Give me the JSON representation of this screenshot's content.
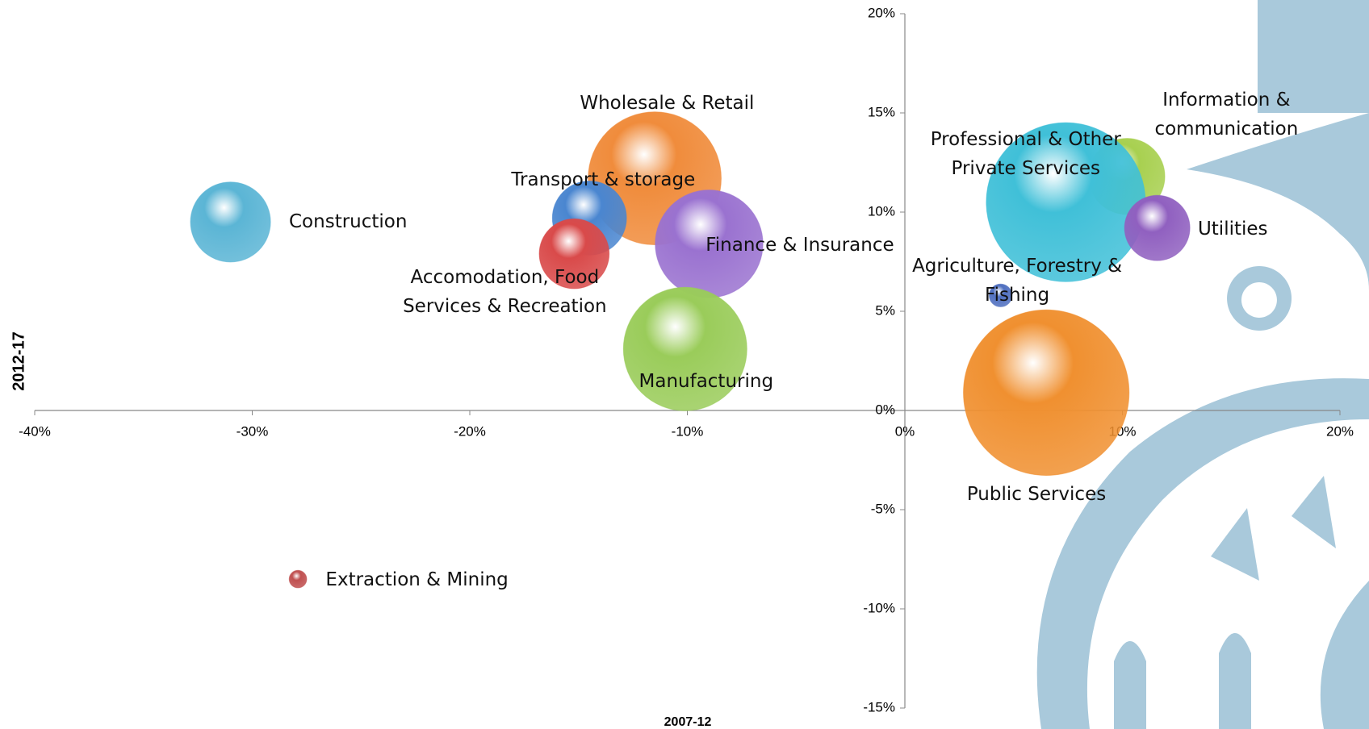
{
  "chart_data": {
    "type": "bubble",
    "x_label": "2007-12",
    "y_label": "2012-17",
    "xlim": [
      -40,
      20
    ],
    "xticks": [
      {
        "value": -40,
        "label": "-40%"
      },
      {
        "value": -30,
        "label": "-30%"
      },
      {
        "value": -20,
        "label": "-20%"
      },
      {
        "value": -10,
        "label": "-10%"
      },
      {
        "value": 0,
        "label": "0%"
      },
      {
        "value": 10,
        "label": "10%"
      },
      {
        "value": 20,
        "label": "20%"
      }
    ],
    "ylim": [
      -15,
      20
    ],
    "yticks": [
      {
        "value": -15,
        "label": "-15%"
      },
      {
        "value": -10,
        "label": "-10%"
      },
      {
        "value": -5,
        "label": "-5%"
      },
      {
        "value": 0,
        "label": "0%"
      },
      {
        "value": 5,
        "label": "5%"
      },
      {
        "value": 10,
        "label": "10%"
      },
      {
        "value": 15,
        "label": "15%"
      },
      {
        "value": 20,
        "label": "20%"
      }
    ],
    "points": [
      {
        "name": "Construction",
        "x": -31.0,
        "y": 9.5,
        "size": 21,
        "color": "#5bb5d5"
      },
      {
        "name": "Wholesale & Retail",
        "x": -11.5,
        "y": 11.7,
        "size": 58,
        "color": "#f08c3c"
      },
      {
        "name": "Transport & storage",
        "x": -14.5,
        "y": 9.7,
        "size": 18,
        "color": "#4a86d0"
      },
      {
        "name": "Accomodation, Food Services & Recreation",
        "x": -15.2,
        "y": 7.9,
        "size": 16,
        "color": "#d94a4a"
      },
      {
        "name": "Finance & Insurance",
        "x": -9.0,
        "y": 8.4,
        "size": 38,
        "color": "#9a72d0"
      },
      {
        "name": "Manufacturing",
        "x": -10.1,
        "y": 3.1,
        "size": 50,
        "color": "#9acc5a"
      },
      {
        "name": "Extraction & Mining",
        "x": -27.9,
        "y": -8.5,
        "size": 1,
        "color": "#c05050"
      },
      {
        "name": "Information & communication",
        "x": 10.2,
        "y": 11.8,
        "size": 19,
        "color": "#a8d050"
      },
      {
        "name": "Professional & Other Private Services",
        "x": 7.4,
        "y": 10.5,
        "size": 83,
        "color": "#40c0d8"
      },
      {
        "name": "Utilities",
        "x": 11.6,
        "y": 9.2,
        "size": 14,
        "color": "#9060c0"
      },
      {
        "name": "Agriculture, Forestry & Fishing",
        "x": 4.4,
        "y": 5.8,
        "size": 1.7,
        "color": "#5070c0"
      },
      {
        "name": "Public Services",
        "x": 6.5,
        "y": 0.9,
        "size": 90,
        "color": "#f09030"
      }
    ]
  }
}
